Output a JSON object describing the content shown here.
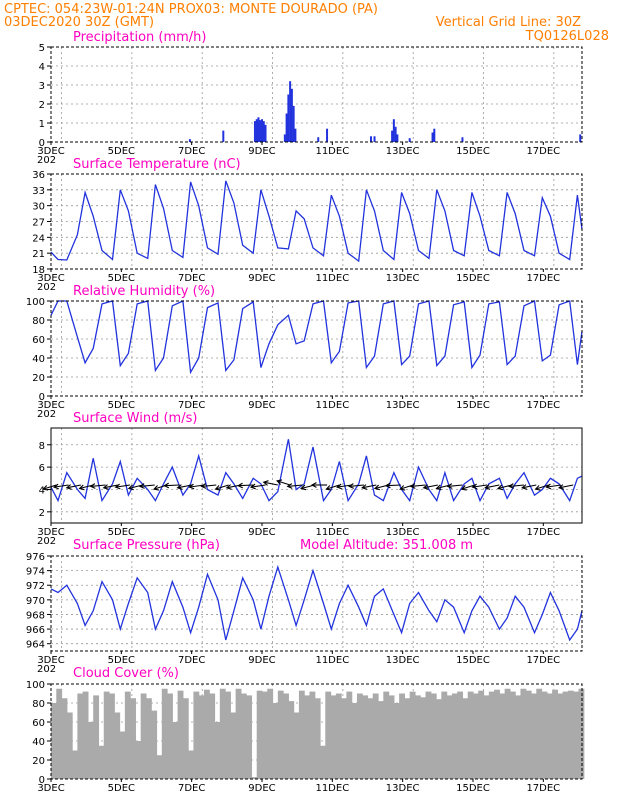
{
  "header": {
    "line1_left": "CPTEC:   054:23W-01:24N   PROX03: MONTE DOURADO (PA)",
    "line2_left": "03DEC2020 30Z (GMT)",
    "line2_right": "Vertical Grid Line: 30Z",
    "line3_right": "TQ0126L028"
  },
  "colors": {
    "header": "#ff7f00",
    "title": "#ff00c0",
    "series": "#2233dd",
    "cloud": "#aaaaaa"
  },
  "x_axis": {
    "labels": [
      "3DEC",
      "5DEC",
      "7DEC",
      "9DEC",
      "11DEC",
      "13DEC",
      "15DEC",
      "17DEC"
    ],
    "start_day": 3,
    "end_day": 18.1,
    "year_stub": "202"
  },
  "chart_data": [
    {
      "id": "precip",
      "type": "bar",
      "title": "Precipitation (mm/h)",
      "ylim": [
        0,
        5
      ],
      "yticks": [
        "0",
        "1",
        "2",
        "3",
        "4",
        "5"
      ],
      "days": [
        6.95,
        7.9,
        8.8,
        8.85,
        8.9,
        8.95,
        9.0,
        9.05,
        9.1,
        9.65,
        9.7,
        9.75,
        9.8,
        9.85,
        9.9,
        9.95,
        10.6,
        10.85,
        12.1,
        12.2,
        12.7,
        12.75,
        12.8,
        12.85,
        13.2,
        13.85,
        13.9,
        14.7,
        18.05
      ],
      "values": [
        0.15,
        0.6,
        1.1,
        1.2,
        1.3,
        1.15,
        1.2,
        1.1,
        0.9,
        0.4,
        1.5,
        2.5,
        3.2,
        2.8,
        1.9,
        0.7,
        0.25,
        0.7,
        0.3,
        0.3,
        0.6,
        1.2,
        0.8,
        0.4,
        0.2,
        0.5,
        0.7,
        0.25,
        0.4
      ]
    },
    {
      "id": "temp",
      "type": "line",
      "title": "Surface Temperature (nC)",
      "ylim": [
        18,
        36
      ],
      "yticks": [
        "18",
        "21",
        "24",
        "27",
        "30",
        "33",
        "36"
      ],
      "days": [
        3.0,
        3.2,
        3.45,
        3.75,
        3.97,
        4.2,
        4.45,
        4.75,
        4.97,
        5.2,
        5.45,
        5.75,
        5.97,
        6.2,
        6.45,
        6.75,
        6.97,
        7.2,
        7.45,
        7.75,
        7.97,
        8.2,
        8.45,
        8.75,
        8.97,
        9.2,
        9.45,
        9.75,
        9.97,
        10.2,
        10.45,
        10.75,
        10.97,
        11.2,
        11.45,
        11.75,
        11.97,
        12.2,
        12.45,
        12.75,
        12.97,
        13.2,
        13.45,
        13.75,
        13.97,
        14.2,
        14.45,
        14.75,
        14.97,
        15.2,
        15.45,
        15.75,
        15.97,
        16.2,
        16.45,
        16.75,
        16.97,
        17.2,
        17.45,
        17.75,
        17.97,
        18.1
      ],
      "values": [
        21.2,
        19.8,
        19.7,
        24.5,
        32.5,
        28.0,
        21.5,
        19.8,
        33.0,
        29.0,
        21.0,
        20.0,
        34.0,
        29.5,
        21.5,
        20.2,
        34.5,
        30.0,
        22.0,
        20.8,
        34.7,
        30.5,
        22.5,
        21.0,
        33.0,
        28.0,
        22.0,
        21.8,
        29.0,
        27.5,
        22.0,
        20.5,
        32.0,
        28.0,
        21.0,
        19.5,
        33.0,
        29.0,
        21.5,
        19.8,
        32.5,
        28.5,
        21.5,
        20.0,
        33.0,
        29.0,
        21.5,
        20.5,
        32.5,
        28.0,
        21.5,
        20.5,
        32.5,
        28.5,
        21.5,
        20.5,
        31.5,
        28.0,
        21.0,
        19.8,
        32.0,
        25.5
      ]
    },
    {
      "id": "rh",
      "type": "line",
      "title": "Relative Humidity (%)",
      "ylim": [
        0,
        100
      ],
      "yticks": [
        "0",
        "20",
        "40",
        "60",
        "80",
        "100"
      ],
      "days": [
        3.0,
        3.2,
        3.45,
        3.75,
        3.97,
        4.2,
        4.45,
        4.75,
        4.97,
        5.2,
        5.45,
        5.75,
        5.97,
        6.2,
        6.45,
        6.75,
        6.97,
        7.2,
        7.45,
        7.75,
        7.97,
        8.2,
        8.45,
        8.75,
        8.97,
        9.2,
        9.45,
        9.75,
        9.97,
        10.2,
        10.45,
        10.75,
        10.97,
        11.2,
        11.45,
        11.75,
        11.97,
        12.2,
        12.45,
        12.75,
        12.97,
        13.2,
        13.45,
        13.75,
        13.97,
        14.2,
        14.45,
        14.75,
        14.97,
        15.2,
        15.45,
        15.75,
        15.97,
        16.2,
        16.45,
        16.75,
        16.97,
        17.2,
        17.45,
        17.75,
        17.97,
        18.1
      ],
      "values": [
        85,
        100,
        100,
        62,
        35,
        50,
        97,
        100,
        32,
        45,
        97,
        100,
        27,
        40,
        95,
        100,
        25,
        40,
        93,
        98,
        27,
        38,
        92,
        99,
        30,
        55,
        75,
        85,
        55,
        58,
        97,
        100,
        35,
        47,
        98,
        100,
        30,
        42,
        97,
        100,
        33,
        42,
        97,
        100,
        32,
        42,
        96,
        99,
        30,
        43,
        97,
        99,
        33,
        42,
        95,
        100,
        37,
        43,
        96,
        100,
        33,
        68
      ]
    },
    {
      "id": "wind",
      "type": "line",
      "title": "Surface Wind (m/s)",
      "ylim": [
        1,
        9.5
      ],
      "yticks": [
        "2",
        "4",
        "6",
        "8"
      ],
      "days": [
        3.0,
        3.2,
        3.45,
        3.75,
        3.97,
        4.2,
        4.45,
        4.75,
        4.97,
        5.2,
        5.45,
        5.75,
        5.97,
        6.2,
        6.45,
        6.75,
        6.97,
        7.2,
        7.45,
        7.75,
        7.97,
        8.2,
        8.45,
        8.75,
        8.97,
        9.2,
        9.45,
        9.75,
        9.97,
        10.2,
        10.45,
        10.75,
        10.97,
        11.2,
        11.45,
        11.75,
        11.97,
        12.2,
        12.45,
        12.75,
        12.97,
        13.2,
        13.45,
        13.75,
        13.97,
        14.2,
        14.45,
        14.75,
        14.97,
        15.2,
        15.45,
        15.75,
        15.97,
        16.2,
        16.45,
        16.75,
        16.97,
        17.2,
        17.45,
        17.75,
        17.97,
        18.1
      ],
      "values": [
        4.2,
        3.0,
        5.5,
        4.0,
        3.2,
        6.8,
        3.0,
        4.5,
        6.5,
        3.5,
        5.0,
        4.0,
        3.0,
        4.5,
        6.0,
        3.5,
        4.5,
        7.0,
        4.0,
        3.5,
        5.5,
        4.5,
        3.2,
        5.0,
        4.5,
        3.0,
        3.8,
        8.5,
        4.0,
        4.5,
        7.8,
        3.0,
        4.0,
        6.5,
        3.0,
        4.5,
        7.0,
        3.5,
        3.0,
        5.5,
        4.0,
        3.0,
        6.0,
        4.0,
        3.0,
        5.5,
        3.0,
        4.5,
        5.0,
        3.0,
        4.5,
        5.0,
        3.2,
        4.5,
        5.5,
        3.5,
        4.0,
        5.0,
        4.5,
        3.0,
        5.0,
        5.2
      ],
      "vector_days": [
        3.15,
        3.5,
        3.85,
        4.2,
        4.55,
        4.9,
        5.25,
        5.6,
        5.95,
        6.3,
        6.65,
        7.0,
        7.35,
        7.7,
        8.05,
        8.4,
        8.75,
        9.1,
        9.45,
        9.8,
        10.15,
        10.5,
        10.85,
        11.2,
        11.55,
        11.9,
        12.25,
        12.6,
        12.95,
        13.3,
        13.65,
        14.0,
        14.35,
        14.7,
        15.05,
        15.4,
        15.75,
        16.1,
        16.45,
        16.8,
        17.15,
        17.5,
        17.85
      ],
      "vector_dir_deg": [
        60,
        75,
        70,
        65,
        80,
        70,
        75,
        65,
        80,
        60,
        85,
        70,
        75,
        80,
        60,
        70,
        85,
        75,
        110,
        120,
        80,
        65,
        90,
        60,
        75,
        80,
        70,
        65,
        85,
        60,
        80,
        70,
        65,
        80,
        60,
        75,
        70,
        65,
        80,
        70,
        60,
        75,
        70
      ]
    },
    {
      "id": "pressure",
      "type": "line",
      "title": "Surface Pressure (hPa)",
      "subtitle": "Model Altitude: 351.008 m",
      "ylim": [
        963,
        976
      ],
      "yticks": [
        "964",
        "966",
        "968",
        "970",
        "972",
        "974",
        "976"
      ],
      "days": [
        3.0,
        3.2,
        3.45,
        3.75,
        3.97,
        4.2,
        4.45,
        4.75,
        4.97,
        5.2,
        5.45,
        5.75,
        5.97,
        6.2,
        6.45,
        6.75,
        6.97,
        7.2,
        7.45,
        7.75,
        7.97,
        8.2,
        8.45,
        8.75,
        8.97,
        9.2,
        9.45,
        9.75,
        9.97,
        10.2,
        10.45,
        10.75,
        10.97,
        11.2,
        11.45,
        11.75,
        11.97,
        12.2,
        12.45,
        12.75,
        12.97,
        13.2,
        13.45,
        13.75,
        13.97,
        14.2,
        14.45,
        14.75,
        14.97,
        15.2,
        15.45,
        15.75,
        15.97,
        16.2,
        16.45,
        16.75,
        16.97,
        17.2,
        17.45,
        17.75,
        17.97,
        18.1
      ],
      "values": [
        971.5,
        971.0,
        972.0,
        969.5,
        966.5,
        968.5,
        972.5,
        970.0,
        966.0,
        969.5,
        973.0,
        971.0,
        966.0,
        968.5,
        972.5,
        969.0,
        965.5,
        969.0,
        973.5,
        970.0,
        964.5,
        968.5,
        973.0,
        970.0,
        966.0,
        970.5,
        974.5,
        970.0,
        966.5,
        970.0,
        974.0,
        969.5,
        966.0,
        969.5,
        972.0,
        969.0,
        966.5,
        970.5,
        971.5,
        968.0,
        965.5,
        969.5,
        971.0,
        968.5,
        967.0,
        970.0,
        969.0,
        965.5,
        968.5,
        970.5,
        969.0,
        966.0,
        967.5,
        970.5,
        969.0,
        965.5,
        968.0,
        971.0,
        968.5,
        964.5,
        966.0,
        968.5
      ]
    },
    {
      "id": "cloud",
      "type": "bar",
      "title": "Cloud Cover (%)",
      "ylim": [
        0,
        100
      ],
      "yticks": [
        "0",
        "20",
        "40",
        "60",
        "80",
        "100"
      ],
      "days": [
        3.0,
        3.15,
        3.3,
        3.45,
        3.6,
        3.75,
        3.9,
        4.05,
        4.2,
        4.35,
        4.5,
        4.65,
        4.8,
        4.95,
        5.1,
        5.25,
        5.4,
        5.55,
        5.7,
        5.85,
        6.0,
        6.15,
        6.3,
        6.45,
        6.6,
        6.75,
        6.9,
        7.05,
        7.2,
        7.35,
        7.5,
        7.65,
        7.8,
        7.95,
        8.1,
        8.25,
        8.4,
        8.55,
        8.7,
        8.85,
        9.0,
        9.15,
        9.3,
        9.45,
        9.6,
        9.75,
        9.9,
        10.05,
        10.2,
        10.35,
        10.5,
        10.65,
        10.8,
        10.95,
        11.1,
        11.25,
        11.4,
        11.55,
        11.7,
        11.85,
        12.0,
        12.15,
        12.3,
        12.45,
        12.6,
        12.75,
        12.9,
        13.05,
        13.2,
        13.35,
        13.5,
        13.65,
        13.8,
        13.95,
        14.1,
        14.25,
        14.4,
        14.55,
        14.7,
        14.85,
        15.0,
        15.15,
        15.3,
        15.45,
        15.6,
        15.75,
        15.9,
        16.05,
        16.2,
        16.35,
        16.5,
        16.65,
        16.8,
        16.95,
        17.1,
        17.25,
        17.4,
        17.55,
        17.7,
        17.85,
        18.0
      ],
      "values": [
        80,
        95,
        85,
        70,
        30,
        90,
        92,
        60,
        88,
        35,
        92,
        90,
        70,
        50,
        92,
        85,
        40,
        90,
        85,
        72,
        25,
        95,
        90,
        60,
        93,
        85,
        30,
        92,
        88,
        94,
        90,
        60,
        95,
        92,
        70,
        95,
        90,
        88,
        2,
        93,
        92,
        95,
        80,
        93,
        90,
        82,
        70,
        93,
        88,
        92,
        85,
        35,
        92,
        88,
        90,
        85,
        92,
        80,
        90,
        88,
        85,
        90,
        82,
        92,
        88,
        80,
        90,
        85,
        92,
        88,
        86,
        92,
        90,
        84,
        92,
        88,
        90,
        92,
        85,
        92,
        90,
        93,
        88,
        92,
        94,
        90,
        95,
        92,
        88,
        95,
        93,
        90,
        95,
        92,
        90,
        94,
        90,
        92,
        93,
        92,
        95
      ]
    }
  ]
}
